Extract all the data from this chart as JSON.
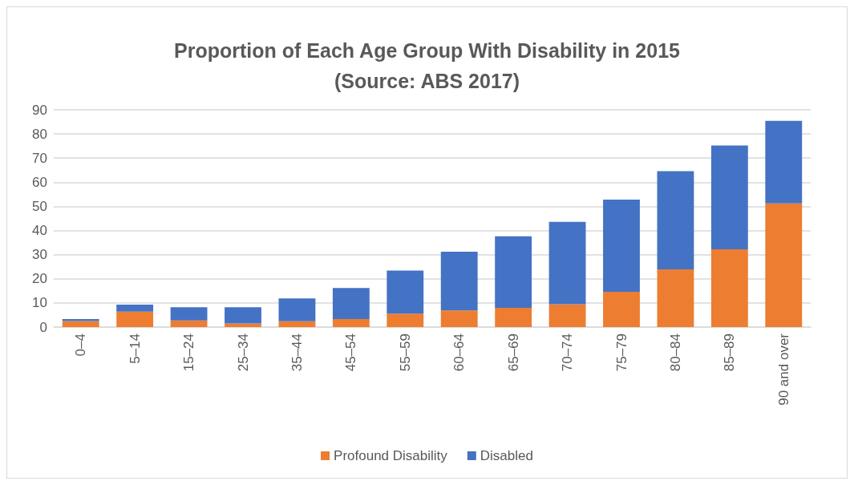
{
  "chart_data": {
    "type": "bar",
    "title": "Proportion of Each Age Group With Disability in 2015\n(Source: ABS 2017)",
    "categories": [
      "0–4",
      "5–14",
      "15–24",
      "25–34",
      "35–44",
      "45–54",
      "55–59",
      "60–64",
      "65–69",
      "70–74",
      "75–79",
      "80–84",
      "85–89",
      "90 and over"
    ],
    "series": [
      {
        "name": "Profound Disability",
        "color": "#ed7d31",
        "values": [
          2.5,
          6.4,
          2.7,
          1.5,
          2.4,
          3.3,
          5.6,
          6.9,
          8.0,
          9.5,
          14.6,
          23.9,
          32.2,
          51.2
        ]
      },
      {
        "name": "Disabled",
        "color": "#4472c4",
        "values": [
          0.8,
          2.9,
          5.5,
          6.7,
          9.5,
          12.9,
          17.8,
          24.3,
          29.6,
          34.1,
          38.2,
          40.7,
          43.0,
          34.2
        ]
      }
    ],
    "stacked": true,
    "ylim": [
      0,
      90
    ],
    "yticks": [
      0,
      10,
      20,
      30,
      40,
      50,
      60,
      70,
      80,
      90
    ],
    "grid": "y",
    "legend": "bottom"
  }
}
